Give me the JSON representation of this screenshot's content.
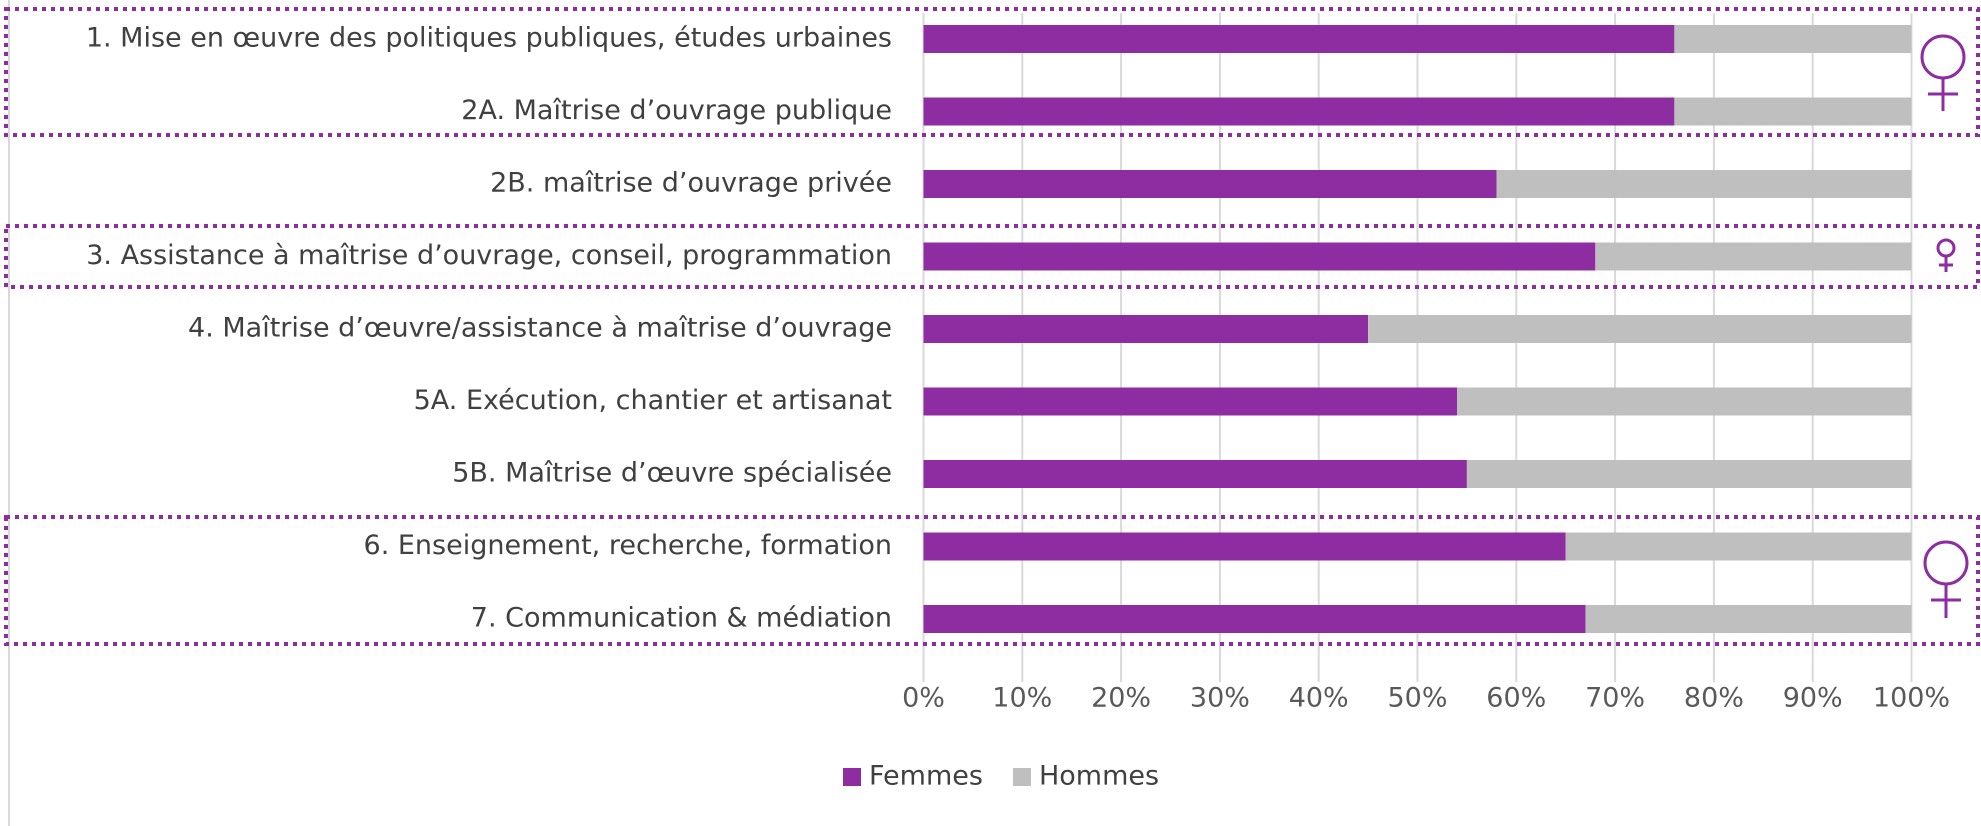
{
  "chart_data": {
    "type": "bar",
    "orientation": "horizontal",
    "stacked": true,
    "categories": [
      "1. Mise en œuvre des politiques publiques, études urbaines",
      "2A. Maîtrise d’ouvrage publique",
      "2B. maîtrise d’ouvrage privée",
      "3. Assistance à maîtrise d’ouvrage, conseil, programmation",
      "4. Maîtrise d’œuvre/assistance à maîtrise d’ouvrage",
      "5A. Exécution, chantier et artisanat",
      "5B. Maîtrise d’œuvre spécialisée",
      "6. Enseignement, recherche, formation",
      "7. Communication & médiation"
    ],
    "series": [
      {
        "name": "Femmes",
        "color": "#8e2ca2",
        "values": [
          76,
          76,
          58,
          68,
          45,
          54,
          55,
          65,
          67
        ]
      },
      {
        "name": "Hommes",
        "color": "#bfbfbf",
        "values": [
          24,
          24,
          42,
          32,
          55,
          46,
          45,
          35,
          33
        ]
      }
    ],
    "xlim": [
      0,
      100
    ],
    "xticks": [
      {
        "value": 0,
        "label": "0%"
      },
      {
        "value": 10,
        "label": "10%"
      },
      {
        "value": 20,
        "label": "20%"
      },
      {
        "value": 30,
        "label": "30%"
      },
      {
        "value": 40,
        "label": "40%"
      },
      {
        "value": 50,
        "label": "50%"
      },
      {
        "value": 60,
        "label": "60%"
      },
      {
        "value": 70,
        "label": "70%"
      },
      {
        "value": 80,
        "label": "80%"
      },
      {
        "value": 90,
        "label": "90%"
      },
      {
        "value": 100,
        "label": "100%"
      }
    ],
    "grid": true,
    "legend": "bottom"
  }
}
